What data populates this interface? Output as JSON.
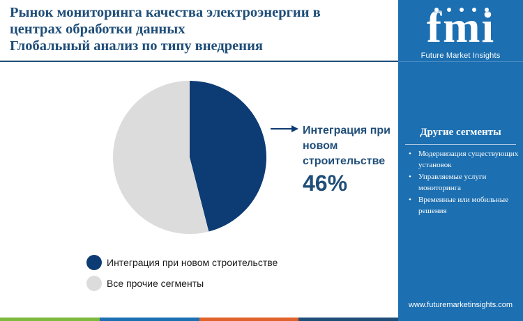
{
  "header": {
    "title_lines": [
      "Рынок мониторинга качества электроэнергии в",
      "центрах обработки данных",
      "Глобальный анализ по типу внедрения"
    ]
  },
  "brand": {
    "logo_text": "fmi",
    "subtitle": "Future Market Insights",
    "website": "www.futuremarketinsights.com",
    "panel_color": "#1c6fb1"
  },
  "sidebar": {
    "heading": "Другие сегменты",
    "items": [
      "Модернизация существующих установок",
      "Управляемые услуги мониторинга",
      "Временные или мобильные решения"
    ]
  },
  "callout": {
    "label": "Интеграция при новом строительстве",
    "value": "46%"
  },
  "chart_data": {
    "type": "pie",
    "slices": [
      {
        "label": "Интеграция при новом строительстве",
        "value": 46,
        "color": "#0d3b73"
      },
      {
        "label": "Все прочие сегменты",
        "value": 54,
        "color": "#dcdcdc"
      }
    ],
    "legend": "bottom-left"
  },
  "bottom_bar_colors": [
    "#7db83f",
    "#1c6fb1",
    "#e0622b",
    "#1f4e79"
  ]
}
